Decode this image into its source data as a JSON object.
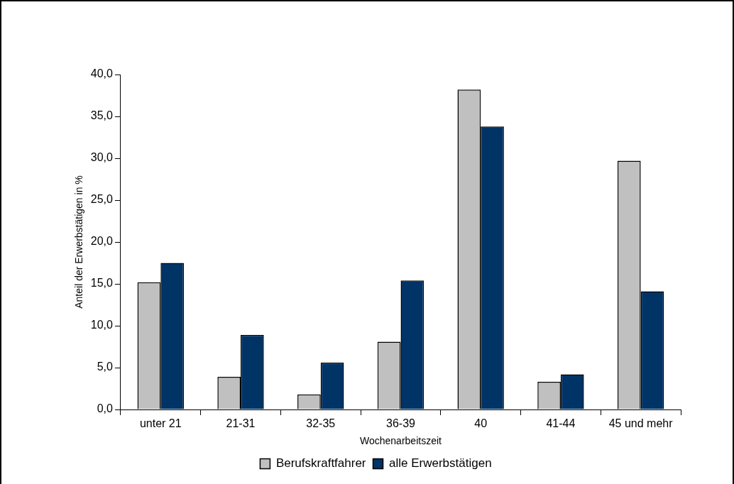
{
  "chart_data": {
    "type": "bar",
    "xlabel": "Wochenarbeitszeit",
    "ylabel": "Anteil der Erwerbstätigen in %",
    "categories": [
      "unter 21",
      "21-31",
      "32-35",
      "36-39",
      "40",
      "41-44",
      "45 und mehr"
    ],
    "series": [
      {
        "name": "Berufskraftfahrer",
        "color": "#c0c0c0",
        "values": [
          15.2,
          3.9,
          1.8,
          8.1,
          38.2,
          3.3,
          29.7
        ]
      },
      {
        "name": "alle Erwerbstätigen",
        "color": "#003366",
        "values": [
          17.5,
          8.9,
          5.6,
          15.4,
          33.8,
          4.2,
          14.1
        ]
      }
    ],
    "ylim": [
      0,
      40
    ],
    "yticks": [
      {
        "value": 0,
        "label": "0,0"
      },
      {
        "value": 5,
        "label": "5,0"
      },
      {
        "value": 10,
        "label": "10,0"
      },
      {
        "value": 15,
        "label": "15,0"
      },
      {
        "value": 20,
        "label": "20,0"
      },
      {
        "value": 25,
        "label": "25,0"
      },
      {
        "value": 30,
        "label": "30,0"
      },
      {
        "value": 35,
        "label": "35,0"
      },
      {
        "value": 40,
        "label": "40,0"
      }
    ],
    "grid": false,
    "legend": "bottom"
  }
}
